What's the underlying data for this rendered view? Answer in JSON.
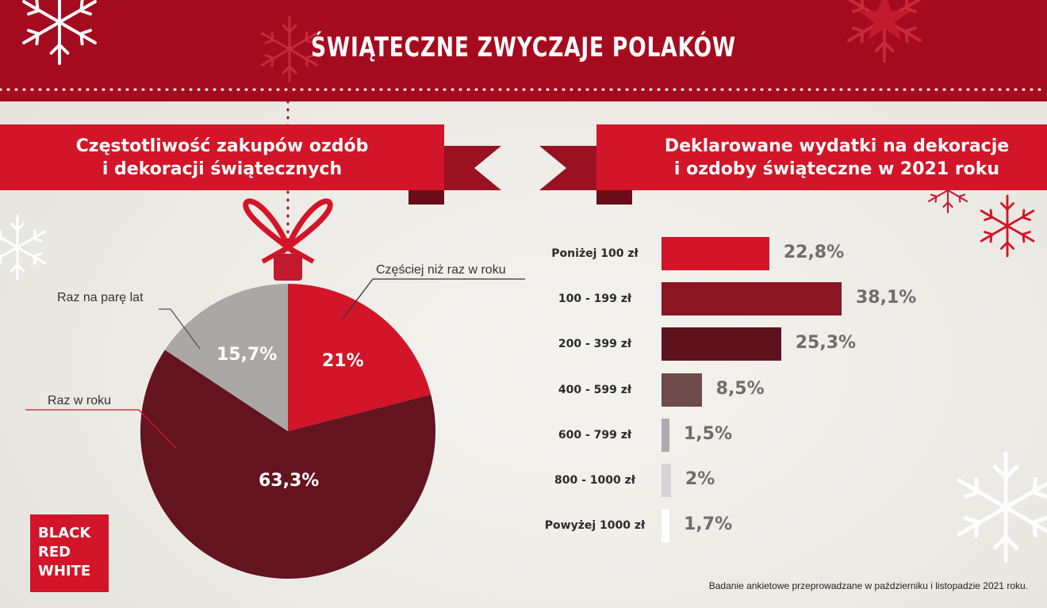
{
  "header": {
    "title": "ŚWIĄTECZNE ZWYCZAJE POLAKÓW"
  },
  "colors": {
    "header_red": "#a50b1f",
    "ribbon_red": "#d21528",
    "ribbon_dark": "#9a1222",
    "pie_red": "#d21528",
    "pie_maroon": "#63141f",
    "pie_gray": "#a9a8a7"
  },
  "left_panel": {
    "title_line1": "Częstotliwość zakupów ozdób",
    "title_line2": "i dekoracji świątecznych"
  },
  "right_panel": {
    "title_line1": "Deklarowane wydatki na dekoracje",
    "title_line2": "i ozdoby świąteczne w 2021 roku"
  },
  "brand": {
    "line1": "BLACK",
    "line2": "RED",
    "line3": "WHITE"
  },
  "source_note": "Badanie ankietowe przeprowadzane w październiku i listopadzie 2021 roku.",
  "chart_data": [
    {
      "type": "pie",
      "title": "Częstotliwość zakupów ozdób i dekoracji świątecznych",
      "slices": [
        {
          "label": "Częściej niż raz w roku",
          "value": 21,
          "value_label": "21%",
          "color": "#d21528"
        },
        {
          "label": "Raz w roku",
          "value": 63.3,
          "value_label": "63,3%",
          "color": "#63141f"
        },
        {
          "label": "Raz na parę lat",
          "value": 15.7,
          "value_label": "15,7%",
          "color": "#a9a8a7"
        }
      ]
    },
    {
      "type": "bar",
      "orientation": "horizontal",
      "title": "Deklarowane wydatki na dekoracje i ozdoby świąteczne w 2021 roku",
      "categories": [
        "Poniżej 100 zł",
        "100 - 199 zł",
        "200 - 399 zł",
        "400 - 599 zł",
        "600 - 799 zł",
        "800 - 1000 zł",
        "Powyżej 1000 zł"
      ],
      "values": [
        22.8,
        38.1,
        25.3,
        8.5,
        1.5,
        2,
        1.7
      ],
      "value_labels": [
        "22,8%",
        "38,1%",
        "25,3%",
        "8,5%",
        "1,5%",
        "2%",
        "1,7%"
      ],
      "colors": [
        "#d21528",
        "#8c1522",
        "#5e121d",
        "#6e4a4a",
        "#acacac",
        "#d4d4d4",
        "#ffffff"
      ]
    }
  ]
}
